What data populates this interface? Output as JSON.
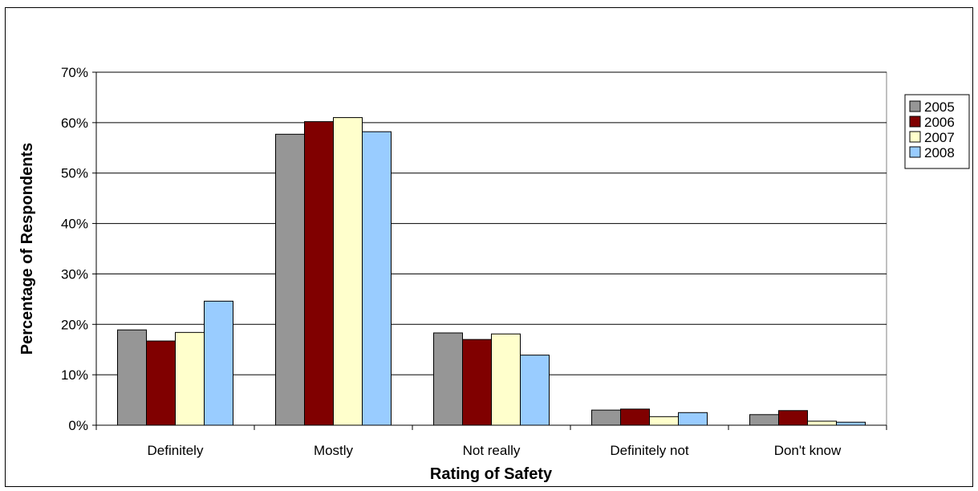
{
  "chart_data": {
    "type": "bar",
    "title": "",
    "xlabel": "Rating of Safety",
    "ylabel": "Percentage of Respondents",
    "ylim": [
      0,
      0.7
    ],
    "yticks": [
      {
        "value": 0,
        "label": "0%"
      },
      {
        "value": 0.1,
        "label": "10%"
      },
      {
        "value": 0.2,
        "label": "20%"
      },
      {
        "value": 0.3,
        "label": "30%"
      },
      {
        "value": 0.4,
        "label": "40%"
      },
      {
        "value": 0.5,
        "label": "50%"
      },
      {
        "value": 0.6,
        "label": "60%"
      },
      {
        "value": 0.7,
        "label": "70%"
      }
    ],
    "categories": [
      "Definitely",
      "Mostly",
      "Not really",
      "Definitely not",
      "Don't know"
    ],
    "series": [
      {
        "name": "2005",
        "color": "#969696",
        "values": [
          0.189,
          0.577,
          0.183,
          0.03,
          0.021
        ]
      },
      {
        "name": "2006",
        "color": "#800000",
        "values": [
          0.167,
          0.602,
          0.17,
          0.032,
          0.029
        ]
      },
      {
        "name": "2007",
        "color": "#FFFFCC",
        "values": [
          0.184,
          0.61,
          0.181,
          0.017,
          0.008
        ]
      },
      {
        "name": "2008",
        "color": "#99CCFF",
        "values": [
          0.246,
          0.582,
          0.139,
          0.025,
          0.006
        ]
      }
    ],
    "grid": true,
    "legend_position": "right"
  }
}
